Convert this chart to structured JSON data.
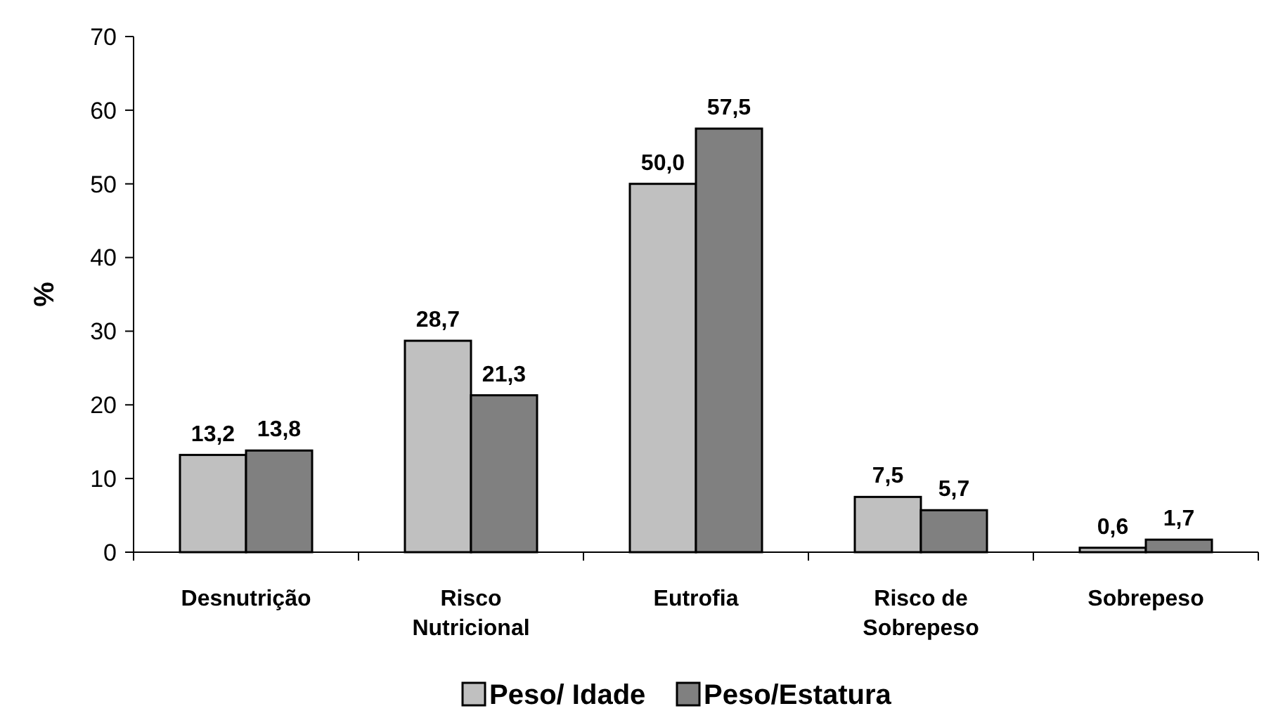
{
  "chart_data": {
    "type": "bar",
    "ylabel": "%",
    "categories": [
      "Desnutrição",
      "Risco Nutricional",
      "Eutrofia",
      "Risco de Sobrepeso",
      "Sobrepeso"
    ],
    "series": [
      {
        "name": "Peso/ Idade",
        "color": "#c0c0c0",
        "values": [
          13.2,
          28.7,
          50.0,
          7.5,
          0.6
        ],
        "value_labels": [
          "13,2",
          "28,7",
          "50,0",
          "7,5",
          "0,6"
        ]
      },
      {
        "name": "Peso/Estatura",
        "color": "#808080",
        "values": [
          13.8,
          21.3,
          57.5,
          5.7,
          1.7
        ],
        "value_labels": [
          "13,8",
          "21,3",
          "57,5",
          "5,7",
          "1,7"
        ]
      }
    ],
    "ylim": [
      0,
      70
    ],
    "yticks": [
      0,
      10,
      20,
      30,
      40,
      50,
      60,
      70
    ],
    "grid": false,
    "legend": "bottom"
  }
}
